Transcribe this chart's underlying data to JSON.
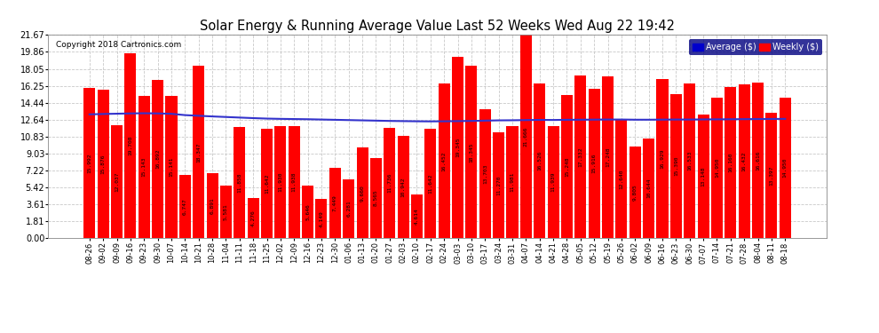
{
  "title": "Solar Energy & Running Average Value Last 52 Weeks Wed Aug 22 19:42",
  "copyright": "Copyright 2018 Cartronics.com",
  "bar_color": "#ff0000",
  "avg_line_color": "#3333cc",
  "background_color": "#ffffff",
  "plot_bg_color": "#ffffff",
  "grid_color": "#bbbbbb",
  "ylim": [
    0.0,
    21.67
  ],
  "yticks": [
    0.0,
    1.81,
    3.61,
    5.42,
    7.22,
    9.03,
    10.83,
    12.64,
    14.44,
    16.25,
    18.05,
    19.86,
    21.67
  ],
  "legend_avg_color": "#0000cc",
  "legend_weekly_color": "#ff0000",
  "categories": [
    "08-26",
    "09-02",
    "09-09",
    "09-16",
    "09-23",
    "09-30",
    "10-07",
    "10-14",
    "10-21",
    "10-28",
    "11-04",
    "11-11",
    "11-18",
    "11-25",
    "12-02",
    "12-09",
    "12-16",
    "12-23",
    "12-30",
    "01-06",
    "01-13",
    "01-20",
    "01-27",
    "02-03",
    "02-10",
    "02-17",
    "02-24",
    "03-03",
    "03-10",
    "03-17",
    "03-24",
    "03-31",
    "04-07",
    "04-14",
    "04-21",
    "04-28",
    "05-05",
    "05-12",
    "05-19",
    "05-26",
    "06-02",
    "06-09",
    "06-16",
    "06-23",
    "06-30",
    "07-07",
    "07-14",
    "07-21",
    "07-28",
    "08-04",
    "08-11",
    "08-18"
  ],
  "weekly_values": [
    15.992,
    15.876,
    12.037,
    19.708,
    15.143,
    16.892,
    15.141,
    6.747,
    18.347,
    6.891,
    5.581,
    11.858,
    4.276,
    11.642,
    11.93,
    11.938,
    5.646,
    4.149,
    7.449,
    6.281,
    9.66,
    8.565,
    11.736,
    10.942,
    4.614,
    11.642,
    16.452,
    19.345,
    18.345,
    13.703,
    11.27,
    11.981,
    21.666,
    16.526,
    11.939,
    15.248,
    17.332,
    15.916,
    17.248,
    12.64,
    9.805,
    10.644,
    16.929,
    15.39,
    16.533,
    13.148,
    14.95,
    16.16,
    16.432,
    16.616,
    13.397,
    14.95
  ],
  "bar_labels": [
    "15.992",
    "15.876",
    "12.037",
    "19.708",
    "15.143",
    "16.892",
    "15.141",
    "6.747",
    "18.347",
    "6.891",
    "5.581",
    "11.858",
    "4.276",
    "11.642",
    "11.930",
    "11.938",
    "5.646",
    "4.149",
    "7.449",
    "6.281",
    "9.660",
    "8.565",
    "11.736",
    "10.942",
    "4.614",
    "11.642",
    "16.452",
    "19.345",
    "18.345",
    "13.703",
    "11.270",
    "11.981",
    "21.666",
    "16.526",
    "11.939",
    "15.248",
    "17.332",
    "15.916",
    "17.248",
    "12.640",
    "9.805",
    "10.644",
    "16.929",
    "15.390",
    "16.533",
    "13.148",
    "14.950",
    "16.160",
    "16.432",
    "16.616",
    "13.397",
    "14.950"
  ],
  "avg_values": [
    13.2,
    13.24,
    13.27,
    13.3,
    13.32,
    13.3,
    13.26,
    13.12,
    13.05,
    12.98,
    12.92,
    12.86,
    12.8,
    12.75,
    12.72,
    12.7,
    12.68,
    12.65,
    12.62,
    12.59,
    12.56,
    12.53,
    12.5,
    12.48,
    12.46,
    12.45,
    12.46,
    12.48,
    12.5,
    12.53,
    12.56,
    12.57,
    12.59,
    12.61,
    12.6,
    12.62,
    12.63,
    12.64,
    12.65,
    12.65,
    12.63,
    12.63,
    12.64,
    12.65,
    12.65,
    12.66,
    12.67,
    12.68,
    12.69,
    12.7,
    12.71,
    12.72
  ]
}
